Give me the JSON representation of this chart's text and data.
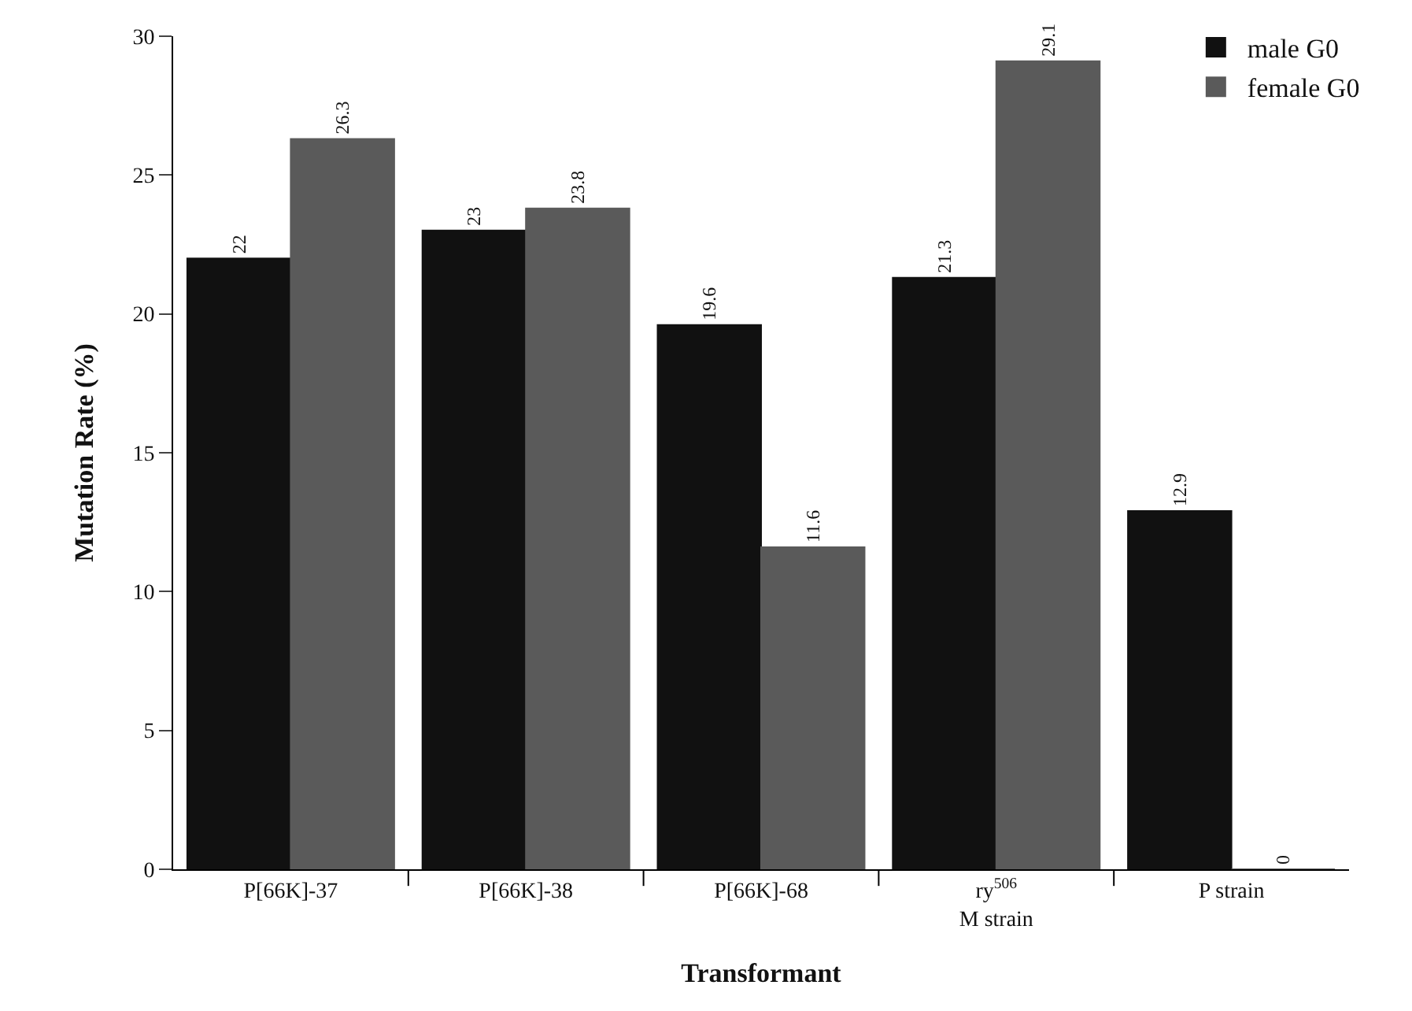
{
  "chart_data": {
    "type": "bar",
    "xlabel": "Transformant",
    "ylabel": "Mutation Rate (%)",
    "categories": [
      "P[66K]-37",
      "P[66K]-38",
      "P[66K]-68",
      "ry$^{506}$\nM strain",
      "P strain"
    ],
    "series": [
      {
        "name": "male G0",
        "color": "#111111",
        "values": [
          22,
          23,
          19.6,
          21.3,
          12.9
        ]
      },
      {
        "name": "female G0",
        "color": "#5a5a5a",
        "values": [
          26.3,
          23.8,
          11.6,
          29.1,
          0
        ]
      }
    ],
    "ylim": [
      0,
      30
    ],
    "yticks": [
      0,
      5,
      10,
      15,
      20,
      25,
      30
    ],
    "grid": false,
    "legend": "top right",
    "data_labels": true
  }
}
